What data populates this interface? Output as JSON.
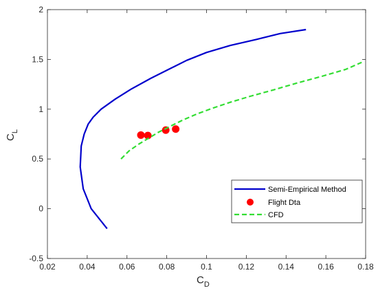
{
  "chart_data": {
    "type": "line",
    "xlabel": {
      "main": "C",
      "sub": "D"
    },
    "ylabel": {
      "main": "C",
      "sub": "L"
    },
    "xlim": [
      0.02,
      0.18
    ],
    "ylim": [
      -0.5,
      2
    ],
    "xticks": [
      "0.02",
      "0.04",
      "0.06",
      "0.08",
      "0.1",
      "0.12",
      "0.14",
      "0.16",
      "0.18"
    ],
    "yticks": [
      "-0.5",
      "0",
      "0.5",
      "1",
      "1.5",
      "2"
    ],
    "grid": false,
    "legend_position": "bottom-right",
    "series": [
      {
        "name": "Semi-Empirical Method",
        "style": "solid-line",
        "color": "#0000cc",
        "x": [
          0.05,
          0.042,
          0.038,
          0.0365,
          0.037,
          0.0385,
          0.0405,
          0.043,
          0.047,
          0.054,
          0.062,
          0.072,
          0.082,
          0.09,
          0.1,
          0.112,
          0.125,
          0.137,
          0.15
        ],
        "y": [
          -0.2,
          0.0,
          0.2,
          0.42,
          0.63,
          0.75,
          0.85,
          0.92,
          1.0,
          1.1,
          1.2,
          1.31,
          1.41,
          1.49,
          1.57,
          1.64,
          1.7,
          1.76,
          1.8
        ]
      },
      {
        "name": "Flight Dta",
        "style": "markers",
        "color": "#ff0000",
        "x": [
          0.067,
          0.0705,
          0.0795,
          0.0845
        ],
        "y": [
          0.74,
          0.735,
          0.79,
          0.8
        ]
      },
      {
        "name": "CFD",
        "style": "dashed-line",
        "color": "#33dd33",
        "x": [
          0.057,
          0.061,
          0.066,
          0.071,
          0.076,
          0.082,
          0.088,
          0.095,
          0.103,
          0.112,
          0.122,
          0.133,
          0.145,
          0.158,
          0.17,
          0.178
        ],
        "y": [
          0.5,
          0.58,
          0.65,
          0.71,
          0.77,
          0.83,
          0.89,
          0.95,
          1.01,
          1.07,
          1.13,
          1.19,
          1.26,
          1.33,
          1.4,
          1.47
        ]
      }
    ]
  }
}
